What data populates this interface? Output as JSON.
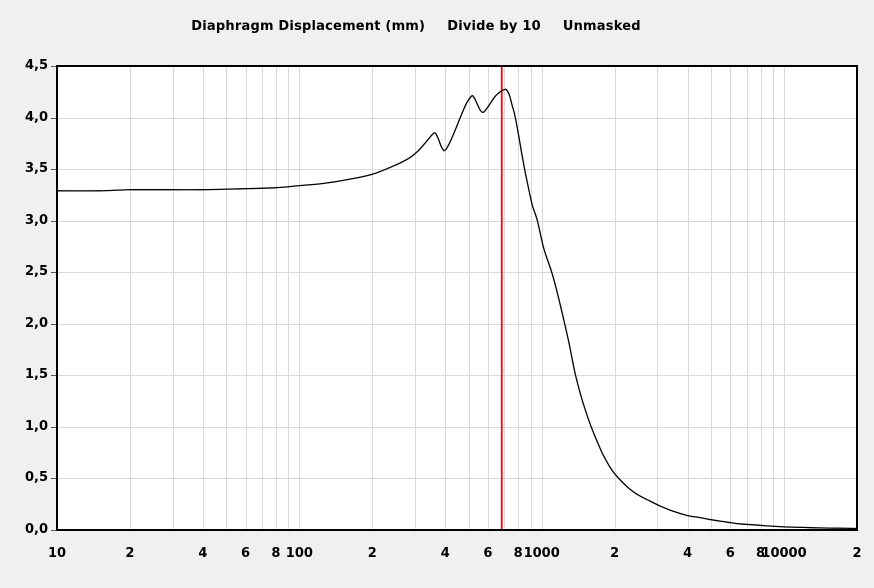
{
  "title": {
    "main": "Diaphragm Displacement (mm)",
    "scale_note": "Divide by 10",
    "mask_note": "Unmasked"
  },
  "colors": {
    "page_bg": "#f0f0f0",
    "plot_bg": "#ffffff",
    "grid": "#d9d9d9",
    "border": "#000000",
    "curve": "#000000",
    "cursor_line": "#ff0000",
    "text": "#000000"
  },
  "chart_data": {
    "type": "line",
    "title": "Diaphragm Displacement (mm)   Divide by 10   Unmasked",
    "x_scale": "log",
    "x_range": [
      10,
      20000
    ],
    "ylim": [
      0,
      4.5
    ],
    "grid": "on",
    "legend": "none",
    "y_ticks": [
      {
        "value": 0.0,
        "label": "0,0"
      },
      {
        "value": 0.5,
        "label": "0,5"
      },
      {
        "value": 1.0,
        "label": "1,0"
      },
      {
        "value": 1.5,
        "label": "1,5"
      },
      {
        "value": 2.0,
        "label": "2,0"
      },
      {
        "value": 2.5,
        "label": "2,5"
      },
      {
        "value": 3.0,
        "label": "3,0"
      },
      {
        "value": 3.5,
        "label": "3,5"
      },
      {
        "value": 4.0,
        "label": "4,0"
      },
      {
        "value": 4.5,
        "label": "4,5"
      }
    ],
    "x_ticks": [
      {
        "value": 10,
        "label": "10"
      },
      {
        "value": 20,
        "label": "2"
      },
      {
        "value": 40,
        "label": "4"
      },
      {
        "value": 60,
        "label": "6"
      },
      {
        "value": 80,
        "label": "8"
      },
      {
        "value": 100,
        "label": "100"
      },
      {
        "value": 200,
        "label": "2"
      },
      {
        "value": 400,
        "label": "4"
      },
      {
        "value": 600,
        "label": "6"
      },
      {
        "value": 800,
        "label": "8"
      },
      {
        "value": 1000,
        "label": "1000"
      },
      {
        "value": 2000,
        "label": "2"
      },
      {
        "value": 4000,
        "label": "4"
      },
      {
        "value": 6000,
        "label": "6"
      },
      {
        "value": 8000,
        "label": "8"
      },
      {
        "value": 10000,
        "label": "10000"
      },
      {
        "value": 20000,
        "label": "2"
      }
    ],
    "marker_line": {
      "x": 684,
      "color": "#ff0000"
    },
    "series": [
      {
        "name": "diaphragm displacement (mm, divided by 10)",
        "color": "#000000",
        "points": [
          [
            10,
            3.29
          ],
          [
            15,
            3.29
          ],
          [
            20,
            3.3
          ],
          [
            30,
            3.3
          ],
          [
            40,
            3.3
          ],
          [
            60,
            3.31
          ],
          [
            80,
            3.32
          ],
          [
            100,
            3.34
          ],
          [
            125,
            3.36
          ],
          [
            160,
            3.4
          ],
          [
            200,
            3.45
          ],
          [
            250,
            3.54
          ],
          [
            285,
            3.61
          ],
          [
            310,
            3.68
          ],
          [
            335,
            3.77
          ],
          [
            355,
            3.84
          ],
          [
            363,
            3.85
          ],
          [
            372,
            3.81
          ],
          [
            385,
            3.72
          ],
          [
            395,
            3.68
          ],
          [
            405,
            3.7
          ],
          [
            420,
            3.77
          ],
          [
            440,
            3.88
          ],
          [
            465,
            4.02
          ],
          [
            490,
            4.14
          ],
          [
            510,
            4.2
          ],
          [
            520,
            4.21
          ],
          [
            535,
            4.16
          ],
          [
            555,
            4.08
          ],
          [
            572,
            4.05
          ],
          [
            590,
            4.08
          ],
          [
            615,
            4.14
          ],
          [
            645,
            4.21
          ],
          [
            675,
            4.25
          ],
          [
            700,
            4.27
          ],
          [
            715,
            4.27
          ],
          [
            735,
            4.22
          ],
          [
            755,
            4.12
          ],
          [
            775,
            4.02
          ],
          [
            800,
            3.85
          ],
          [
            825,
            3.67
          ],
          [
            850,
            3.5
          ],
          [
            880,
            3.33
          ],
          [
            915,
            3.15
          ],
          [
            960,
            3.0
          ],
          [
            1020,
            2.73
          ],
          [
            1100,
            2.5
          ],
          [
            1160,
            2.3
          ],
          [
            1230,
            2.05
          ],
          [
            1300,
            1.8
          ],
          [
            1365,
            1.55
          ],
          [
            1440,
            1.33
          ],
          [
            1520,
            1.15
          ],
          [
            1600,
            1.0
          ],
          [
            1700,
            0.85
          ],
          [
            1800,
            0.72
          ],
          [
            1950,
            0.58
          ],
          [
            2100,
            0.49
          ],
          [
            2300,
            0.4
          ],
          [
            2500,
            0.34
          ],
          [
            2800,
            0.28
          ],
          [
            3100,
            0.23
          ],
          [
            3500,
            0.18
          ],
          [
            4000,
            0.14
          ],
          [
            4500,
            0.12
          ],
          [
            5000,
            0.1
          ],
          [
            5700,
            0.08
          ],
          [
            6500,
            0.06
          ],
          [
            7500,
            0.05
          ],
          [
            8500,
            0.04
          ],
          [
            10000,
            0.03
          ],
          [
            12000,
            0.025
          ],
          [
            14000,
            0.02
          ],
          [
            17000,
            0.017
          ],
          [
            20000,
            0.015
          ]
        ]
      }
    ]
  }
}
